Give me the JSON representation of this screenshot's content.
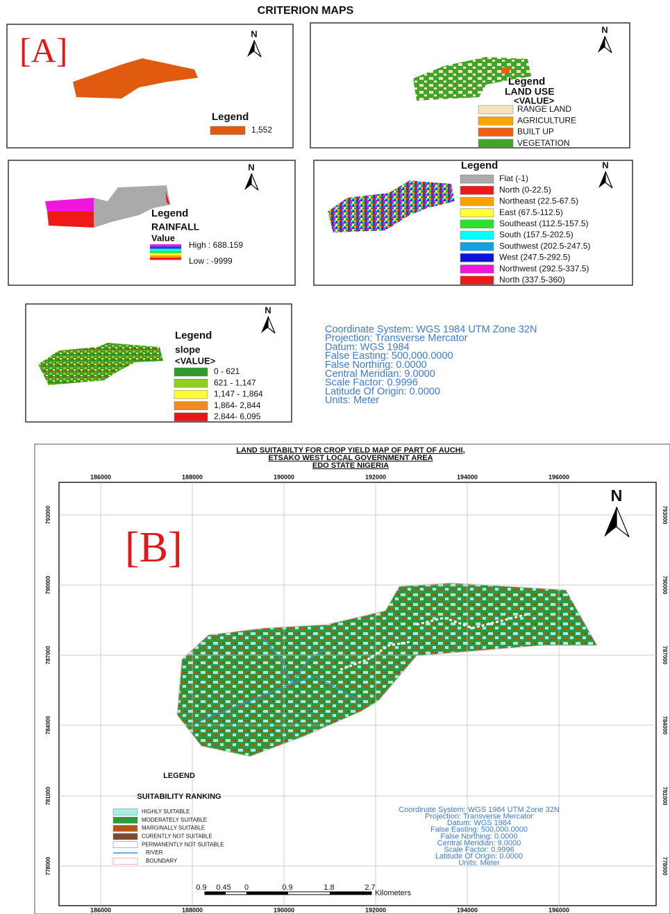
{
  "title": "CRITERION MAPS",
  "panel_a": {
    "label": "[A]",
    "north": "N",
    "legend_title": "Legend",
    "legend_items": [
      "1,552"
    ]
  },
  "land_use": {
    "north": "N",
    "legend_title": "Legend",
    "layer": "LAND USE",
    "field": "<VALUE>",
    "legend_items": [
      "RANGE LAND",
      "AGRICULTURE",
      "BUILT UP",
      "VEGETATION"
    ]
  },
  "rainfall": {
    "north": "N",
    "legend_title": "Legend",
    "layer": "RAINFALL",
    "field": "Value",
    "high": "High : 688.159",
    "low": "Low : -9999"
  },
  "aspect": {
    "north": "N",
    "legend_title": "Legend",
    "legend_items": [
      "Flat (-1)",
      "North (0-22.5)",
      "Northeast (22.5-67.5)",
      "East (67.5-112.5)",
      "Southeast (112.5-157.5)",
      "South (157.5-202.5)",
      "Southwest (202.5-247.5)",
      "West (247.5-292.5)",
      "Northwest (292.5-337.5)",
      "North (337.5-360)"
    ]
  },
  "slope": {
    "north": "N",
    "legend_title": "Legend",
    "layer": "slope",
    "field": "<VALUE>",
    "legend_items": [
      "0 - 621",
      "621 - 1,147",
      "1,147 - 1,864",
      "1,864- 2,844",
      "2,844- 6,095"
    ]
  },
  "coordinate_info": [
    "Coordinate System: WGS 1984 UTM Zone 32N",
    "Projection: Transverse Mercator",
    "Datum: WGS 1984",
    "False Easting: 500,000.0000",
    "False Northing: 0.0000",
    "Central Meridian: 9.0000",
    "Scale Factor: 0.9996",
    "Latitude Of Origin: 0.0000",
    "Units: Meter"
  ],
  "suitability_map": {
    "title_lines": [
      "LAND SUITABILTY FOR CROP YIELD MAP OF PART OF AUCHI,",
      "ETSAKO WEST LOCAL GOVERNMENT AREA",
      "EDO STATE NIGERIA"
    ],
    "label": "[B]",
    "north": "N",
    "x_ticks": [
      "186000",
      "188000",
      "190000",
      "192000",
      "194000",
      "196000"
    ],
    "y_ticks": [
      "793000",
      "790000",
      "787000",
      "784000",
      "781000",
      "778000"
    ],
    "legend_title": "LEGEND",
    "legend_subtitle": "SUITABILITY RANKING",
    "legend_items": [
      "HIGHLY SUITABLE",
      "MODERATELY SUITABLE",
      "MARGINALLY SUITABLE",
      "CURENTLY NOT SUITABLE",
      "PERMANENTLY NOT SUITABLE",
      "RIVER",
      "BOUNDARY"
    ],
    "coordinate_info": [
      "Coordinate System: WGS 1984 UTM Zone 32N",
      "Projection: Transverse Mercator",
      "Datum: WGS 1984",
      "False Easting: 500,000.0000",
      "False Northing: 0.0000",
      "Central Meridian: 9.0000",
      "Scale Factor: 0.9996",
      "Latitude Of Origin: 0.0000",
      "Units: Meter"
    ],
    "scale_labels": [
      "0.9",
      "0.45",
      "0",
      "0.9",
      "1.8",
      "2.7"
    ],
    "scale_unit": "Kilometers"
  }
}
